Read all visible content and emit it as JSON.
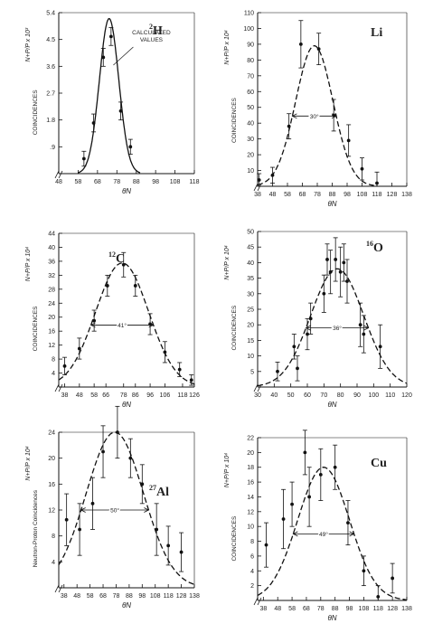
{
  "chart_data": [
    {
      "type": "line",
      "panel_label": "2H",
      "label_mass": "2",
      "label_element": "H",
      "xlabel": "θN",
      "ylabel": "COINCIDENCES",
      "ylabel_formula": "N+P/P x 10³",
      "annotation": "CALCULATED VALUES",
      "width_annotation": "",
      "xlim": [
        48,
        118
      ],
      "ylim": [
        0,
        5.4
      ],
      "x_ticks": [
        "48",
        "58",
        "68",
        "78",
        "88",
        "98",
        "108",
        "118"
      ],
      "y_ticks": [
        ".9",
        "1.8",
        "2.7",
        "3.6",
        "4.5",
        "5.4"
      ],
      "points": [
        {
          "x": 61,
          "y": 0.5,
          "err": 0.25
        },
        {
          "x": 66,
          "y": 1.7,
          "err": 0.3
        },
        {
          "x": 71,
          "y": 3.9,
          "err": 0.3
        },
        {
          "x": 75,
          "y": 4.6,
          "err": 0.3
        },
        {
          "x": 80,
          "y": 2.1,
          "err": 0.3
        },
        {
          "x": 85,
          "y": 0.9,
          "err": 0.25
        }
      ],
      "curve": {
        "peak": 74,
        "height": 5.2,
        "sigma": 5.0
      }
    },
    {
      "type": "line",
      "panel_label": "Li",
      "label_mass": "",
      "label_element": "Li",
      "xlabel": "θN",
      "ylabel": "COINCIDENCES",
      "ylabel_formula": "N+P/P x 10⁴",
      "annotation": "",
      "width_annotation": "30°",
      "xlim": [
        38,
        138
      ],
      "ylim": [
        0,
        110
      ],
      "x_ticks": [
        "38",
        "48",
        "58",
        "68",
        "78",
        "88",
        "98",
        "108",
        "118",
        "128",
        "138"
      ],
      "y_ticks": [
        "10",
        "20",
        "30",
        "40",
        "50",
        "60",
        "70",
        "80",
        "90",
        "100",
        "110"
      ],
      "points": [
        {
          "x": 39,
          "y": 4,
          "err": 4
        },
        {
          "x": 48,
          "y": 7,
          "err": 5
        },
        {
          "x": 59,
          "y": 38,
          "err": 8
        },
        {
          "x": 67,
          "y": 90,
          "err": 15
        },
        {
          "x": 79,
          "y": 87,
          "err": 10
        },
        {
          "x": 89,
          "y": 45,
          "err": 10
        },
        {
          "x": 99,
          "y": 29,
          "err": 10
        },
        {
          "x": 108,
          "y": 11,
          "err": 7
        },
        {
          "x": 118,
          "y": 2,
          "err": 7
        }
      ],
      "curve": {
        "peak": 76,
        "height": 89,
        "sigma": 12.5
      }
    },
    {
      "type": "line",
      "panel_label": "12C",
      "label_mass": "12",
      "label_element": "C",
      "xlabel": "θN",
      "ylabel": "COINCIDENCES",
      "ylabel_formula": "N+P/P x 10⁴",
      "annotation": "",
      "width_annotation": "41°",
      "xlim": [
        34,
        126
      ],
      "ylim": [
        0,
        44
      ],
      "x_ticks": [
        "38",
        "48",
        "58",
        "66",
        "78",
        "86",
        "96",
        "106",
        "118",
        "126"
      ],
      "y_ticks": [
        "4",
        "8",
        "12",
        "16",
        "20",
        "24",
        "28",
        "32",
        "36",
        "40",
        "44"
      ],
      "points": [
        {
          "x": 38,
          "y": 6,
          "err": 2.5
        },
        {
          "x": 48,
          "y": 11,
          "err": 3
        },
        {
          "x": 58,
          "y": 19,
          "err": 3
        },
        {
          "x": 67,
          "y": 29,
          "err": 3
        },
        {
          "x": 78,
          "y": 35,
          "err": 3.5
        },
        {
          "x": 86,
          "y": 29,
          "err": 3
        },
        {
          "x": 96,
          "y": 18,
          "err": 3
        },
        {
          "x": 106,
          "y": 10,
          "err": 3
        },
        {
          "x": 116,
          "y": 5,
          "err": 2
        },
        {
          "x": 124,
          "y": 2,
          "err": 1.5
        }
      ],
      "curve": {
        "peak": 77,
        "height": 35.5,
        "sigma": 18
      }
    },
    {
      "type": "line",
      "panel_label": "16O",
      "label_mass": "16",
      "label_element": "O",
      "xlabel": "θN",
      "ylabel": "COINCIDENCES",
      "ylabel_formula": "N+P/P x 10⁴",
      "annotation": "",
      "width_annotation": "36°",
      "xlim": [
        30,
        120
      ],
      "ylim": [
        0,
        50
      ],
      "x_ticks": [
        "30",
        "40",
        "50",
        "60",
        "70",
        "80",
        "90",
        "100",
        "110",
        "120"
      ],
      "y_ticks": [
        "5",
        "10",
        "15",
        "20",
        "25",
        "30",
        "35",
        "40",
        "45",
        "50"
      ],
      "points": [
        {
          "x": 42,
          "y": 5,
          "err": 3
        },
        {
          "x": 52,
          "y": 13,
          "err": 4
        },
        {
          "x": 54,
          "y": 6,
          "err": 4
        },
        {
          "x": 60,
          "y": 17,
          "err": 5
        },
        {
          "x": 62,
          "y": 22,
          "err": 5
        },
        {
          "x": 70,
          "y": 30,
          "err": 6
        },
        {
          "x": 72,
          "y": 41,
          "err": 5
        },
        {
          "x": 74,
          "y": 37,
          "err": 7
        },
        {
          "x": 77,
          "y": 41,
          "err": 7
        },
        {
          "x": 80,
          "y": 37,
          "err": 8
        },
        {
          "x": 82,
          "y": 40,
          "err": 6
        },
        {
          "x": 84,
          "y": 34,
          "err": 7
        },
        {
          "x": 92,
          "y": 20,
          "err": 7
        },
        {
          "x": 94,
          "y": 17,
          "err": 6
        },
        {
          "x": 104,
          "y": 13,
          "err": 7
        }
      ],
      "curve": {
        "peak": 78,
        "height": 38,
        "sigma": 16
      }
    },
    {
      "type": "line",
      "panel_label": "27Al",
      "label_mass": "27",
      "label_element": "Al",
      "xlabel": "θN",
      "ylabel": "Neutron-Proton Coincidences",
      "ylabel_formula": "N+P/P x 10⁴",
      "annotation": "",
      "width_annotation": "50°",
      "xlim": [
        34,
        138
      ],
      "ylim": [
        0,
        24
      ],
      "x_ticks": [
        "38",
        "48",
        "58",
        "68",
        "78",
        "88",
        "98",
        "108",
        "118",
        "128",
        "138"
      ],
      "y_ticks": [
        "4",
        "8",
        "12",
        "16",
        "20",
        "24"
      ],
      "points": [
        {
          "x": 40,
          "y": 10.5,
          "err": 4
        },
        {
          "x": 50,
          "y": 9,
          "err": 4
        },
        {
          "x": 60,
          "y": 13,
          "err": 4
        },
        {
          "x": 68,
          "y": 21,
          "err": 4
        },
        {
          "x": 79,
          "y": 24,
          "err": 4
        },
        {
          "x": 89,
          "y": 20,
          "err": 3
        },
        {
          "x": 98,
          "y": 16,
          "err": 3
        },
        {
          "x": 109,
          "y": 9,
          "err": 4
        },
        {
          "x": 118,
          "y": 6.5,
          "err": 3
        },
        {
          "x": 128,
          "y": 5.5,
          "err": 3
        }
      ],
      "curve": {
        "peak": 77,
        "height": 24,
        "sigma": 22
      }
    },
    {
      "type": "line",
      "panel_label": "Cu",
      "label_mass": "",
      "label_element": "Cu",
      "xlabel": "θN",
      "ylabel": "COINCIDENCES",
      "ylabel_formula": "N+P/P x 10⁴",
      "annotation": "",
      "width_annotation": "49°",
      "xlim": [
        34,
        138
      ],
      "ylim": [
        0,
        22
      ],
      "x_ticks": [
        "38",
        "48",
        "58",
        "68",
        "78",
        "88",
        "98",
        "108",
        "118",
        "128",
        "138"
      ],
      "y_ticks": [
        "2",
        "4",
        "6",
        "8",
        "10",
        "12",
        "14",
        "16",
        "18",
        "20",
        "22"
      ],
      "points": [
        {
          "x": 40,
          "y": 7.5,
          "err": 3
        },
        {
          "x": 52,
          "y": 11,
          "err": 4
        },
        {
          "x": 58,
          "y": 13,
          "err": 3
        },
        {
          "x": 67,
          "y": 20,
          "err": 3
        },
        {
          "x": 70,
          "y": 14,
          "err": 4
        },
        {
          "x": 78,
          "y": 17,
          "err": 3.5
        },
        {
          "x": 88,
          "y": 18,
          "err": 3
        },
        {
          "x": 97,
          "y": 10.5,
          "err": 3
        },
        {
          "x": 108,
          "y": 4,
          "err": 2
        },
        {
          "x": 118,
          "y": 0.5,
          "err": 1.5
        },
        {
          "x": 128,
          "y": 3,
          "err": 2
        }
      ],
      "curve": {
        "peak": 80,
        "height": 18,
        "sigma": 18
      }
    }
  ]
}
